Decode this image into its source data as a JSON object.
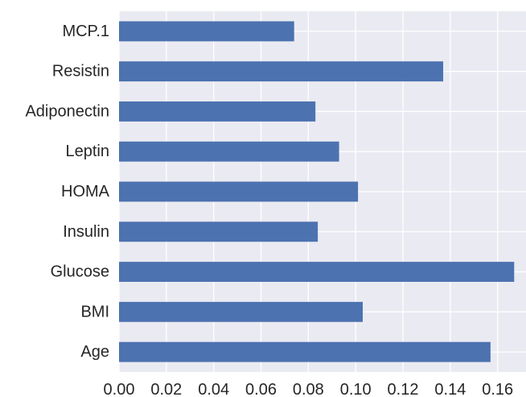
{
  "chart_data": {
    "type": "bar",
    "orientation": "horizontal",
    "title": "",
    "xlabel": "",
    "ylabel": "",
    "categories": [
      "Age",
      "BMI",
      "Glucose",
      "Insulin",
      "HOMA",
      "Leptin",
      "Adiponectin",
      "Resistin",
      "MCP.1"
    ],
    "values": [
      0.157,
      0.103,
      0.167,
      0.084,
      0.101,
      0.093,
      0.083,
      0.137,
      0.074
    ],
    "xlim": [
      0,
      0.172
    ],
    "xticks": [
      0.0,
      0.02,
      0.04,
      0.06,
      0.08,
      0.1,
      0.12,
      0.14,
      0.16
    ],
    "xtick_labels": [
      "0.00",
      "0.02",
      "0.04",
      "0.06",
      "0.08",
      "0.10",
      "0.12",
      "0.14",
      "0.16"
    ],
    "grid": true,
    "colors": {
      "bar": "#4c72b0",
      "plot_background": "#eaeaf2",
      "grid": "#ffffff",
      "text": "#262626"
    }
  }
}
